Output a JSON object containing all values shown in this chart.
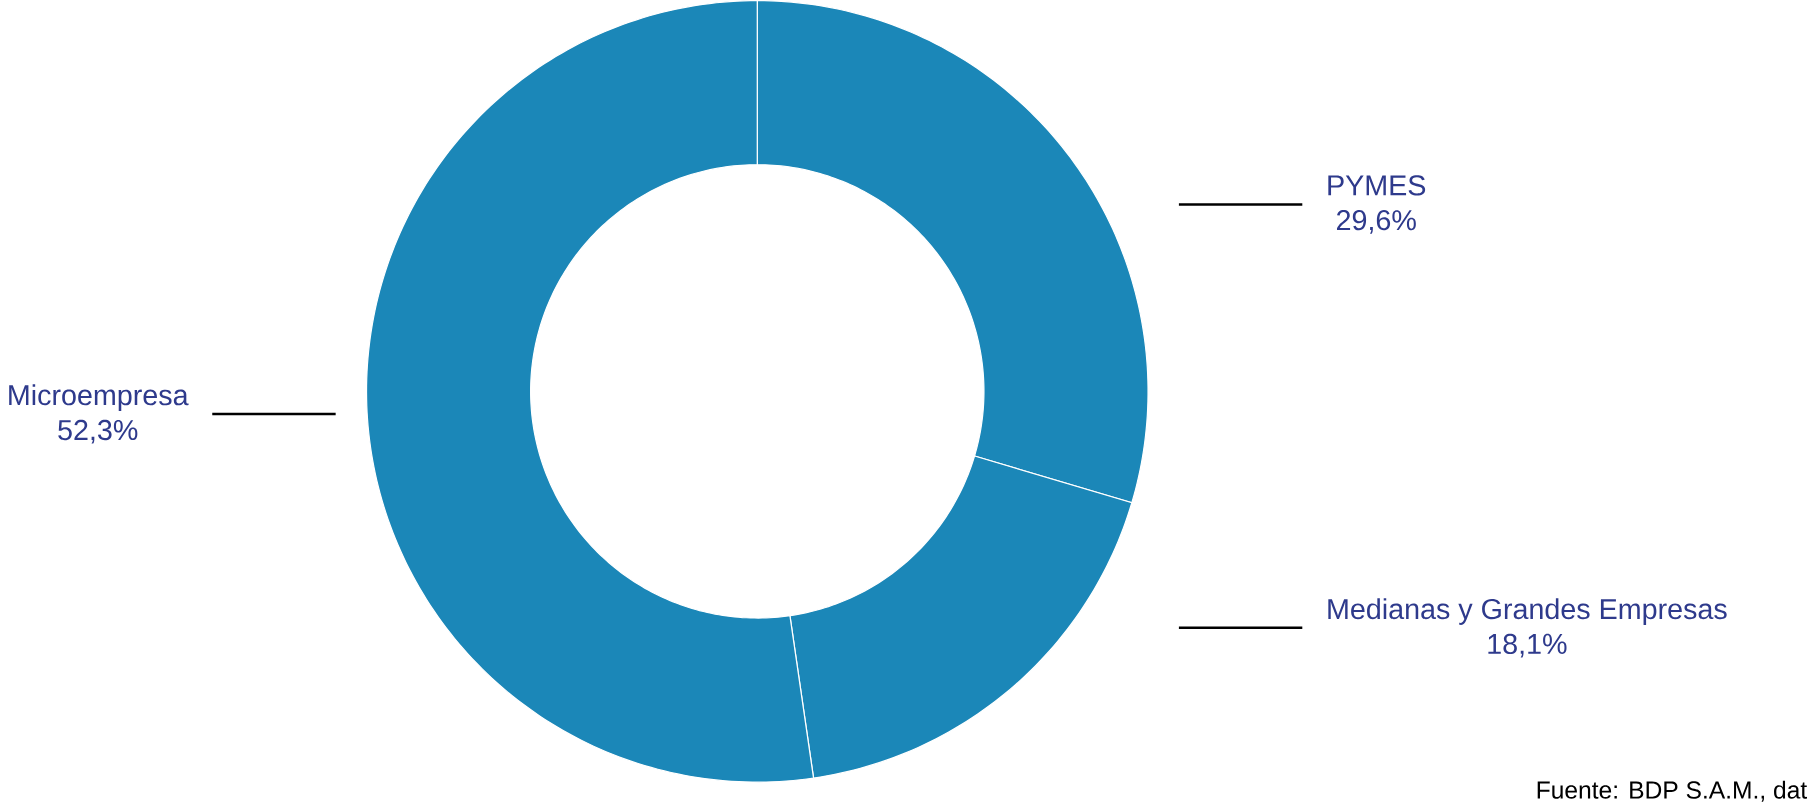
{
  "chart_data": {
    "type": "donut",
    "categories": [
      "PYMES",
      "Medianas y Grandes Empresas",
      "Microempresa"
    ],
    "values": [
      29.6,
      18.1,
      52.3
    ],
    "value_labels": [
      "29,6%",
      "18,1%",
      "52,3%"
    ],
    "colors": [
      "#1b87b8",
      "#1b87b8",
      "#1b87b8"
    ],
    "annotations": [
      "Fuente: BDP S.A.M., dat"
    ]
  }
}
